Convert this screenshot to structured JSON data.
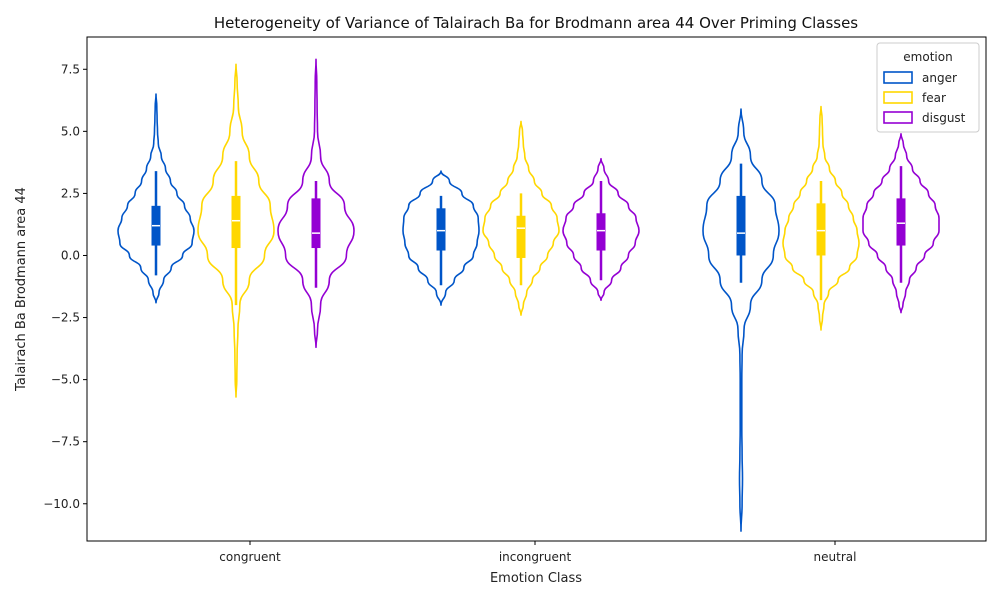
{
  "chart_data": {
    "type": "violin",
    "title": "Heterogeneity of Variance of Talairach Ba for Brodmann area 44 Over Priming Classes",
    "xlabel": "Emotion Class",
    "ylabel": "Talairach Ba Brodmann area 44",
    "categories": [
      "congruent",
      "incongruent",
      "neutral"
    ],
    "ylim": [
      -11.5,
      8.8
    ],
    "yticks": [
      -10.0,
      -7.5,
      -5.0,
      -2.5,
      0.0,
      2.5,
      5.0,
      7.5
    ],
    "ytick_labels": [
      "−10.0",
      "−7.5",
      "−5.0",
      "−2.5",
      "0.0",
      "2.5",
      "5.0",
      "7.5"
    ],
    "grid": false,
    "legend": {
      "title": "emotion",
      "position": "top-right"
    },
    "series": [
      {
        "name": "anger",
        "color": "#0055c8",
        "violins": [
          {
            "min": -1.9,
            "max": 6.5,
            "q1": 0.4,
            "median": 1.2,
            "q3": 2.0,
            "whisker_low": -0.8,
            "whisker_high": 3.4,
            "density": [
              [
                -1.9,
                0.0
              ],
              [
                -1.5,
                0.08
              ],
              [
                -1.0,
                0.2
              ],
              [
                -0.5,
                0.4
              ],
              [
                0.0,
                0.7
              ],
              [
                0.5,
                0.95
              ],
              [
                1.0,
                1.0
              ],
              [
                1.5,
                0.9
              ],
              [
                2.0,
                0.75
              ],
              [
                2.5,
                0.55
              ],
              [
                3.0,
                0.38
              ],
              [
                3.5,
                0.25
              ],
              [
                4.0,
                0.14
              ],
              [
                4.5,
                0.06
              ],
              [
                5.0,
                0.04
              ],
              [
                5.5,
                0.03
              ],
              [
                6.0,
                0.02
              ],
              [
                6.5,
                0.0
              ]
            ]
          },
          {
            "min": -2.0,
            "max": 3.4,
            "q1": 0.2,
            "median": 1.0,
            "q3": 1.9,
            "whisker_low": -1.2,
            "whisker_high": 2.4,
            "density": [
              [
                -2.0,
                0.0
              ],
              [
                -1.5,
                0.12
              ],
              [
                -1.0,
                0.35
              ],
              [
                -0.5,
                0.6
              ],
              [
                0.0,
                0.85
              ],
              [
                0.5,
                0.95
              ],
              [
                1.0,
                1.0
              ],
              [
                1.5,
                0.98
              ],
              [
                2.0,
                0.85
              ],
              [
                2.5,
                0.55
              ],
              [
                3.0,
                0.22
              ],
              [
                3.4,
                0.0
              ]
            ]
          },
          {
            "min": -11.1,
            "max": 5.9,
            "q1": 0.0,
            "median": 0.9,
            "q3": 2.4,
            "whisker_low": -1.1,
            "whisker_high": 3.7,
            "density": [
              [
                -11.1,
                0.0
              ],
              [
                -10.0,
                0.03
              ],
              [
                -9.0,
                0.04
              ],
              [
                -8.0,
                0.03
              ],
              [
                -7.0,
                0.02
              ],
              [
                -6.0,
                0.02
              ],
              [
                -5.0,
                0.02
              ],
              [
                -4.0,
                0.03
              ],
              [
                -3.0,
                0.08
              ],
              [
                -2.0,
                0.25
              ],
              [
                -1.0,
                0.55
              ],
              [
                0.0,
                0.85
              ],
              [
                1.0,
                1.0
              ],
              [
                2.0,
                0.9
              ],
              [
                3.0,
                0.55
              ],
              [
                4.0,
                0.25
              ],
              [
                5.0,
                0.07
              ],
              [
                5.9,
                0.0
              ]
            ]
          }
        ]
      },
      {
        "name": "fear",
        "color": "#ffd700",
        "violins": [
          {
            "min": -5.7,
            "max": 7.7,
            "q1": 0.3,
            "median": 1.4,
            "q3": 2.4,
            "whisker_low": -2.0,
            "whisker_high": 3.8,
            "density": [
              [
                -5.7,
                0.0
              ],
              [
                -5.0,
                0.02
              ],
              [
                -4.0,
                0.03
              ],
              [
                -3.0,
                0.05
              ],
              [
                -2.0,
                0.1
              ],
              [
                -1.0,
                0.35
              ],
              [
                0.0,
                0.75
              ],
              [
                1.0,
                1.0
              ],
              [
                2.0,
                0.9
              ],
              [
                3.0,
                0.6
              ],
              [
                4.0,
                0.35
              ],
              [
                5.0,
                0.16
              ],
              [
                6.0,
                0.06
              ],
              [
                7.0,
                0.03
              ],
              [
                7.7,
                0.0
              ]
            ]
          },
          {
            "min": -2.4,
            "max": 5.4,
            "q1": -0.1,
            "median": 1.1,
            "q3": 1.6,
            "whisker_low": -1.2,
            "whisker_high": 2.5,
            "density": [
              [
                -2.4,
                0.0
              ],
              [
                -2.0,
                0.06
              ],
              [
                -1.5,
                0.15
              ],
              [
                -1.0,
                0.3
              ],
              [
                -0.5,
                0.5
              ],
              [
                0.0,
                0.7
              ],
              [
                0.5,
                0.85
              ],
              [
                1.0,
                1.0
              ],
              [
                1.5,
                0.95
              ],
              [
                2.0,
                0.8
              ],
              [
                2.5,
                0.55
              ],
              [
                3.0,
                0.35
              ],
              [
                3.5,
                0.2
              ],
              [
                4.0,
                0.1
              ],
              [
                4.5,
                0.06
              ],
              [
                5.0,
                0.04
              ],
              [
                5.4,
                0.0
              ]
            ]
          },
          {
            "min": -3.0,
            "max": 6.0,
            "q1": 0.0,
            "median": 1.0,
            "q3": 2.1,
            "whisker_low": -1.8,
            "whisker_high": 3.0,
            "density": [
              [
                -3.0,
                0.0
              ],
              [
                -2.5,
                0.04
              ],
              [
                -2.0,
                0.08
              ],
              [
                -1.5,
                0.2
              ],
              [
                -1.0,
                0.45
              ],
              [
                -0.5,
                0.75
              ],
              [
                0.0,
                0.95
              ],
              [
                0.5,
                1.0
              ],
              [
                1.0,
                0.95
              ],
              [
                1.5,
                0.85
              ],
              [
                2.0,
                0.72
              ],
              [
                2.5,
                0.55
              ],
              [
                3.0,
                0.38
              ],
              [
                3.5,
                0.22
              ],
              [
                4.0,
                0.1
              ],
              [
                4.5,
                0.05
              ],
              [
                5.0,
                0.04
              ],
              [
                5.5,
                0.03
              ],
              [
                6.0,
                0.0
              ]
            ]
          }
        ]
      },
      {
        "name": "disgust",
        "color": "#9400d3",
        "violins": [
          {
            "min": -3.7,
            "max": 7.9,
            "q1": 0.3,
            "median": 0.9,
            "q3": 2.3,
            "whisker_low": -1.3,
            "whisker_high": 3.0,
            "density": [
              [
                -3.7,
                0.0
              ],
              [
                -3.0,
                0.04
              ],
              [
                -2.0,
                0.12
              ],
              [
                -1.0,
                0.35
              ],
              [
                0.0,
                0.8
              ],
              [
                1.0,
                1.0
              ],
              [
                2.0,
                0.75
              ],
              [
                3.0,
                0.35
              ],
              [
                4.0,
                0.12
              ],
              [
                5.0,
                0.04
              ],
              [
                6.0,
                0.03
              ],
              [
                7.0,
                0.02
              ],
              [
                7.9,
                0.0
              ]
            ]
          },
          {
            "min": -1.8,
            "max": 3.9,
            "q1": 0.2,
            "median": 1.0,
            "q3": 1.7,
            "whisker_low": -1.0,
            "whisker_high": 3.0,
            "density": [
              [
                -1.8,
                0.0
              ],
              [
                -1.5,
                0.08
              ],
              [
                -1.0,
                0.28
              ],
              [
                -0.5,
                0.52
              ],
              [
                0.0,
                0.72
              ],
              [
                0.5,
                0.9
              ],
              [
                1.0,
                1.0
              ],
              [
                1.5,
                0.92
              ],
              [
                2.0,
                0.72
              ],
              [
                2.5,
                0.45
              ],
              [
                3.0,
                0.2
              ],
              [
                3.5,
                0.08
              ],
              [
                3.9,
                0.0
              ]
            ]
          },
          {
            "min": -2.3,
            "max": 4.9,
            "q1": 0.4,
            "median": 1.3,
            "q3": 2.3,
            "whisker_low": -1.1,
            "whisker_high": 3.6,
            "density": [
              [
                -2.3,
                0.0
              ],
              [
                -2.0,
                0.05
              ],
              [
                -1.5,
                0.12
              ],
              [
                -1.0,
                0.22
              ],
              [
                -0.5,
                0.4
              ],
              [
                0.0,
                0.62
              ],
              [
                0.5,
                0.85
              ],
              [
                1.0,
                1.0
              ],
              [
                1.5,
                1.0
              ],
              [
                2.0,
                0.9
              ],
              [
                2.5,
                0.72
              ],
              [
                3.0,
                0.5
              ],
              [
                3.5,
                0.3
              ],
              [
                4.0,
                0.15
              ],
              [
                4.5,
                0.06
              ],
              [
                4.9,
                0.0
              ]
            ]
          }
        ]
      }
    ]
  }
}
